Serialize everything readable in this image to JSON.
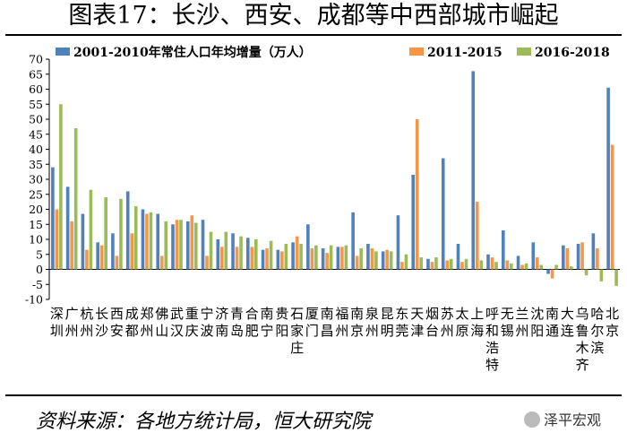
{
  "header": {
    "title": "图表17：长沙、西安、成都等中西部城市崛起"
  },
  "footer": {
    "source": "资料来源：各地方统计局，恒大研究院",
    "watermark": "泽平宏观",
    "watermark_icon": "wechat-icon"
  },
  "colors": {
    "s1": "#4f81bd",
    "s2": "#f79646",
    "s3": "#9bbb59"
  },
  "chart_data": {
    "type": "bar",
    "title": "",
    "xlabel": "",
    "ylabel": "",
    "ylim": [
      -10,
      70
    ],
    "yticks": [
      -10,
      -5,
      0,
      5,
      10,
      15,
      20,
      25,
      30,
      35,
      40,
      45,
      50,
      55,
      60,
      65,
      70
    ],
    "legend_position": "top",
    "categories": [
      "深圳",
      "广州",
      "杭州",
      "长沙",
      "西安",
      "成都",
      "郑州",
      "佛山",
      "武汉",
      "重庆",
      "宁波",
      "济南",
      "青岛",
      "合肥",
      "南宁",
      "贵阳",
      "石家庄",
      "厦门",
      "南昌",
      "福州",
      "南京",
      "泉州",
      "昆明",
      "东莞",
      "天津",
      "烟台",
      "苏州",
      "太原",
      "上海",
      "呼和浩特",
      "无锡",
      "兰州",
      "沈阳",
      "南通",
      "大连",
      "乌鲁木齐",
      "哈尔滨",
      "北京"
    ],
    "series": [
      {
        "name": "2001-2010年常住人口年均增量（万人）",
        "values": [
          34,
          27.5,
          18.5,
          9,
          12,
          26,
          20,
          18.5,
          15,
          16,
          16.5,
          10,
          12,
          10.5,
          6.5,
          6.5,
          9,
          15,
          7,
          7.5,
          19,
          8.5,
          6,
          18,
          31.5,
          3.5,
          37,
          8.5,
          66,
          5,
          13,
          4.5,
          9,
          -1.5,
          8,
          8.5,
          12,
          60.5
        ]
      },
      {
        "name": "2011-2015",
        "values": [
          20,
          16,
          6.5,
          8,
          4.5,
          12,
          18.5,
          4.5,
          16.5,
          18,
          4.5,
          7.5,
          7.5,
          7.5,
          7,
          6,
          11,
          7,
          5.5,
          7.5,
          4.5,
          7,
          6.5,
          2.5,
          50,
          2.5,
          3,
          2.5,
          22.5,
          4,
          3,
          1.5,
          4,
          -3,
          7,
          9,
          7,
          41.5
        ]
      },
      {
        "name": "2016-2018",
        "values": [
          55,
          47,
          26.5,
          24,
          23.5,
          21,
          19,
          16,
          16.5,
          15.5,
          12.5,
          12.5,
          11,
          10,
          9.5,
          8.5,
          8.5,
          8,
          8,
          8,
          7,
          6,
          6,
          5,
          4,
          4,
          3.5,
          3.5,
          3,
          2.5,
          2,
          2,
          1.5,
          1.5,
          1,
          -2,
          -4,
          -5.5
        ]
      }
    ]
  }
}
